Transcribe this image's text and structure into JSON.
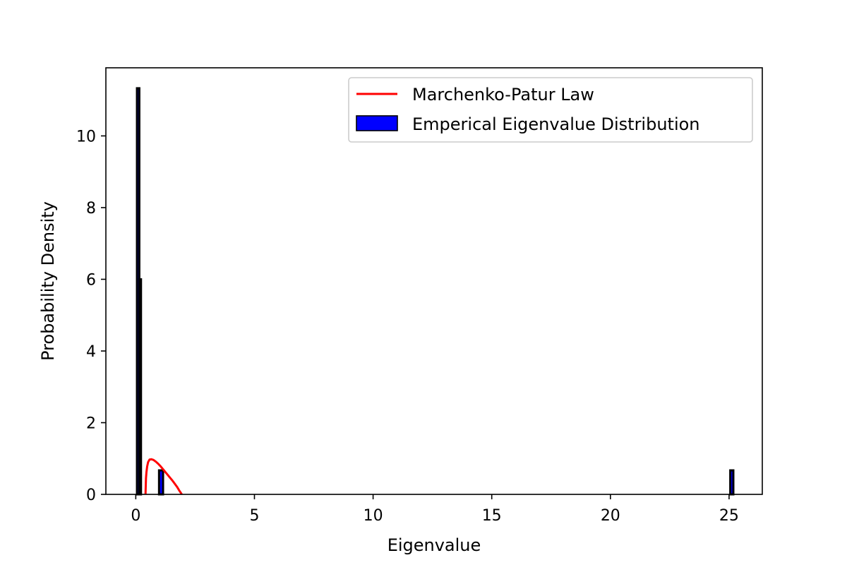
{
  "chart_data": {
    "type": "bar",
    "title": "",
    "xlabel": "Eigenvalue",
    "ylabel": "Probability Density",
    "xlim": [
      -1.26,
      26.4
    ],
    "ylim": [
      0,
      11.9
    ],
    "xticks": [
      0,
      5,
      10,
      15,
      20,
      25
    ],
    "xtick_labels": [
      "0",
      "5",
      "10",
      "15",
      "20",
      "25"
    ],
    "yticks": [
      0,
      2,
      4,
      6,
      8,
      10
    ],
    "ytick_labels": [
      "0",
      "2",
      "4",
      "6",
      "8",
      "10"
    ],
    "grid": false,
    "legend_position": "upper-right",
    "colors": {
      "mp_line": "#ff0000",
      "hist_fill": "#0000ff",
      "hist_edge": "#000000",
      "axes": "#000000"
    },
    "series": [
      {
        "name": "Marchenko-Patur Law",
        "type": "line",
        "x": [
          0.41,
          0.43,
          0.45,
          0.48,
          0.52,
          0.58,
          0.66,
          0.75,
          0.85,
          0.95,
          1.05,
          1.15,
          1.25,
          1.35,
          1.45,
          1.55,
          1.65,
          1.75,
          1.82,
          1.88,
          1.92,
          1.94
        ],
        "y": [
          0.0,
          0.45,
          0.62,
          0.78,
          0.9,
          0.97,
          0.98,
          0.96,
          0.91,
          0.85,
          0.78,
          0.7,
          0.62,
          0.54,
          0.46,
          0.38,
          0.29,
          0.2,
          0.12,
          0.06,
          0.02,
          0.0
        ]
      },
      {
        "name": "Emperical Eigenvalue Distribution",
        "type": "histogram",
        "bins": [
          {
            "x0": 0.05,
            "x1": 0.15,
            "value": 11.33
          },
          {
            "x0": 0.15,
            "x1": 0.22,
            "value": 6.0
          },
          {
            "x0": 0.98,
            "x1": 1.15,
            "value": 0.67
          },
          {
            "x0": 25.05,
            "x1": 25.18,
            "value": 0.67
          }
        ]
      }
    ]
  }
}
